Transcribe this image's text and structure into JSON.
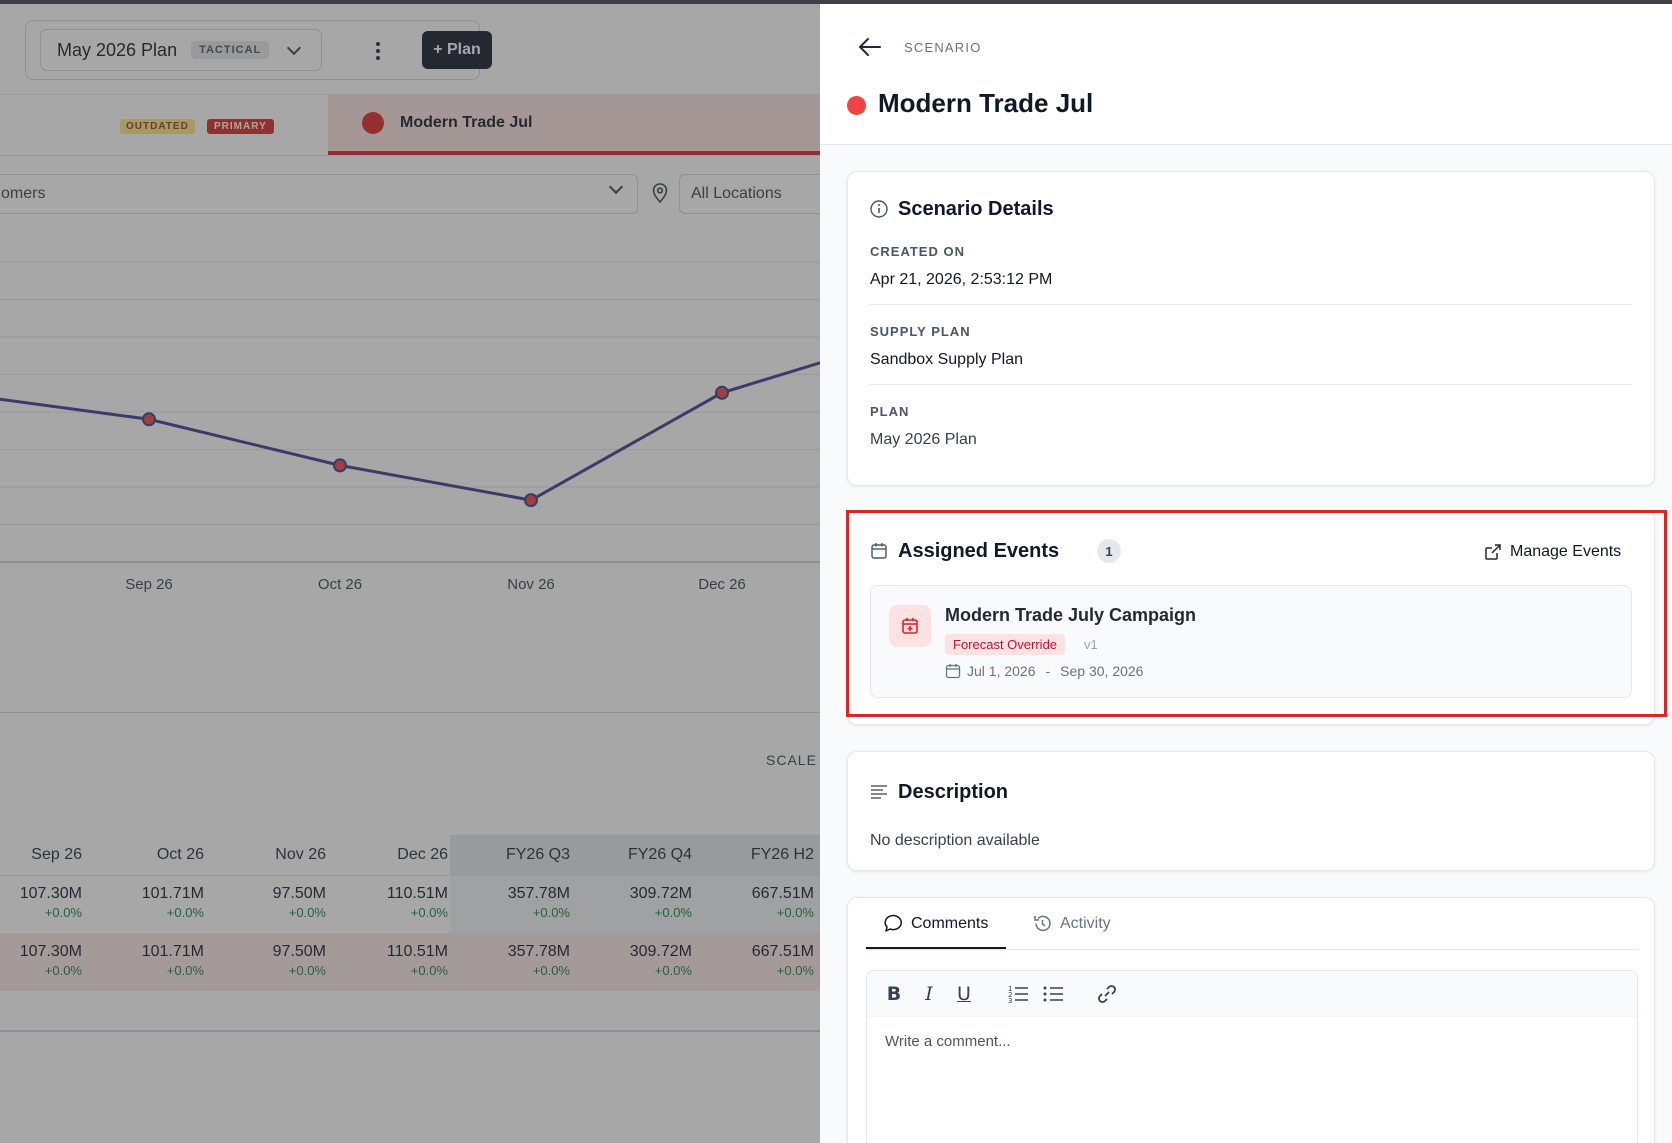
{
  "background": {
    "plan": {
      "name": "May 2026 Plan",
      "type_tag": "TACTICAL",
      "add_plan_label": "+ Plan"
    },
    "scenario_tabs": {
      "outdated_tag": "OUTDATED",
      "primary_tag": "PRIMARY",
      "active_tab_label": "Modern Trade Jul"
    },
    "filters": {
      "customers_text": "omers",
      "locations_text": "All Locations"
    },
    "chart_data": {
      "type": "line",
      "categories": [
        "Sep 26",
        "Oct 26",
        "Nov 26",
        "Dec 26"
      ],
      "series": [
        {
          "values": [
            107.3,
            101.71,
            97.5,
            110.51
          ],
          "color": "#3b3b8f"
        }
      ]
    },
    "scale_label": "SCALE",
    "table": {
      "columns": [
        "Sep 26",
        "Oct 26",
        "Nov 26",
        "Dec 26",
        "FY26 Q3",
        "FY26 Q4",
        "FY26 H2"
      ],
      "rows": [
        {
          "values": [
            "107.30M",
            "101.71M",
            "97.50M",
            "110.51M",
            "357.78M",
            "309.72M",
            "667.51M"
          ],
          "deltas": [
            "+0.0%",
            "+0.0%",
            "+0.0%",
            "+0.0%",
            "+0.0%",
            "+0.0%",
            "+0.0%"
          ]
        },
        {
          "values": [
            "107.30M",
            "101.71M",
            "97.50M",
            "110.51M",
            "357.78M",
            "309.72M",
            "667.51M"
          ],
          "deltas": [
            "+0.0%",
            "+0.0%",
            "+0.0%",
            "+0.0%",
            "+0.0%",
            "+0.0%",
            "+0.0%"
          ]
        }
      ]
    }
  },
  "drawer": {
    "eyebrow": "SCENARIO",
    "title": "Modern Trade Jul",
    "title_dot_color": "#ef4444",
    "details": {
      "heading": "Scenario Details",
      "created_on_label": "CREATED ON",
      "created_on_value": "Apr 21, 2026, 2:53:12 PM",
      "supply_plan_label": "SUPPLY PLAN",
      "supply_plan_value": "Sandbox Supply Plan",
      "plan_label": "PLAN",
      "plan_value": "May 2026 Plan"
    },
    "events": {
      "heading": "Assigned Events",
      "count": "1",
      "manage_label": "Manage Events",
      "items": [
        {
          "name": "Modern Trade July Campaign",
          "type": "Forecast Override",
          "version": "v1",
          "start": "Jul 1, 2026",
          "separator": "-",
          "end": "Sep 30, 2026"
        }
      ]
    },
    "description": {
      "heading": "Description",
      "text": "No description available"
    },
    "comments": {
      "tab_comments": "Comments",
      "tab_activity": "Activity",
      "placeholder": "Write a comment..."
    }
  }
}
